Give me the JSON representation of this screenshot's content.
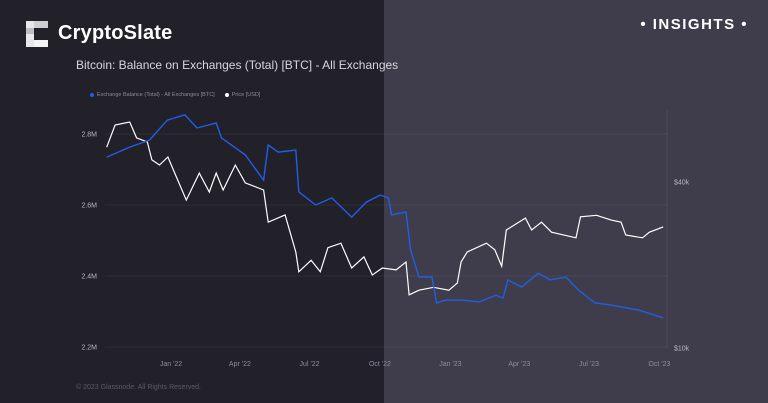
{
  "header": {
    "brand": "CryptoSlate",
    "badge": "INSIGHTS",
    "subtitle": "Bitcoin: Balance on Exchanges (Total) [BTC] - All Exchanges"
  },
  "footer": {
    "copyright": "© 2023 Glassnode. All Rights Reserved."
  },
  "colors": {
    "balance": "#1f5fe8",
    "price": "#ffffff",
    "background_left": "#222029",
    "background_right": "#3f3d4b"
  },
  "chart_data": {
    "type": "line",
    "title": "Bitcoin: Balance on Exchanges (Total) [BTC] - All Exchanges",
    "legend": {
      "placement": "top-left",
      "entries": [
        "Exchange Balance (Total) - All Exchanges [BTC]",
        "Price [USD]"
      ]
    },
    "x_ticks": [
      "Jan '22",
      "Apr '22",
      "Jul '22",
      "Oct '22",
      "Jan '23",
      "Apr '23",
      "Jul '23",
      "Oct '23"
    ],
    "y_left": {
      "ticks": [
        "2.8M",
        "2.6M",
        "2.4M",
        "2.2M"
      ],
      "tick_values": [
        2.8,
        2.6,
        2.4,
        2.2
      ],
      "range": [
        2.2,
        2.85
      ],
      "unit": "M BTC"
    },
    "y_right": {
      "ticks": [
        "$40k",
        "$10k"
      ],
      "tick_values": [
        40000,
        10000
      ],
      "scale": "log"
    },
    "grid": true,
    "series": [
      {
        "name": "Exchange Balance (Total) - All Exchanges [BTC]",
        "axis": "left",
        "points": [
          [
            "2021-10-09",
            2.735
          ],
          [
            "2021-11-08",
            2.763
          ],
          [
            "2021-12-04",
            2.783
          ],
          [
            "2021-12-27",
            2.839
          ],
          [
            "2022-01-19",
            2.854
          ],
          [
            "2022-02-04",
            2.817
          ],
          [
            "2022-03-01",
            2.831
          ],
          [
            "2022-03-08",
            2.789
          ],
          [
            "2022-04-08",
            2.741
          ],
          [
            "2022-05-02",
            2.67
          ],
          [
            "2022-05-08",
            2.769
          ],
          [
            "2022-05-21",
            2.749
          ],
          [
            "2022-06-13",
            2.755
          ],
          [
            "2022-06-17",
            2.637
          ],
          [
            "2022-07-09",
            2.6
          ],
          [
            "2022-07-30",
            2.62
          ],
          [
            "2022-08-25",
            2.566
          ],
          [
            "2022-09-13",
            2.608
          ],
          [
            "2022-10-01",
            2.628
          ],
          [
            "2022-10-12",
            2.62
          ],
          [
            "2022-10-16",
            2.572
          ],
          [
            "2022-11-04",
            2.58
          ],
          [
            "2022-11-10",
            2.473
          ],
          [
            "2022-11-21",
            2.397
          ],
          [
            "2022-12-08",
            2.397
          ],
          [
            "2022-12-14",
            2.324
          ],
          [
            "2022-12-26",
            2.332
          ],
          [
            "2023-01-16",
            2.332
          ],
          [
            "2023-02-08",
            2.327
          ],
          [
            "2023-03-01",
            2.346
          ],
          [
            "2023-03-11",
            2.338
          ],
          [
            "2023-03-17",
            2.389
          ],
          [
            "2023-04-04",
            2.369
          ],
          [
            "2023-04-26",
            2.408
          ],
          [
            "2023-05-11",
            2.389
          ],
          [
            "2023-06-01",
            2.397
          ],
          [
            "2023-06-17",
            2.361
          ],
          [
            "2023-07-09",
            2.324
          ],
          [
            "2023-07-30",
            2.318
          ],
          [
            "2023-09-04",
            2.304
          ],
          [
            "2023-10-06",
            2.282
          ]
        ]
      },
      {
        "name": "Price [USD]",
        "axis": "right",
        "points": [
          [
            "2021-10-09",
            53500
          ],
          [
            "2021-10-20",
            64400
          ],
          [
            "2021-11-08",
            66000
          ],
          [
            "2021-11-17",
            57800
          ],
          [
            "2021-12-01",
            55900
          ],
          [
            "2021-12-07",
            48100
          ],
          [
            "2021-12-17",
            46100
          ],
          [
            "2021-12-28",
            49300
          ],
          [
            "2022-01-08",
            41700
          ],
          [
            "2022-01-21",
            34400
          ],
          [
            "2022-02-07",
            43100
          ],
          [
            "2022-02-20",
            36800
          ],
          [
            "2022-03-01",
            43100
          ],
          [
            "2022-03-10",
            37400
          ],
          [
            "2022-03-26",
            46100
          ],
          [
            "2022-04-08",
            39700
          ],
          [
            "2022-05-02",
            37400
          ],
          [
            "2022-05-08",
            28600
          ],
          [
            "2022-05-30",
            30400
          ],
          [
            "2022-06-13",
            22300
          ],
          [
            "2022-06-17",
            18900
          ],
          [
            "2022-07-03",
            20800
          ],
          [
            "2022-07-15",
            18900
          ],
          [
            "2022-07-25",
            23100
          ],
          [
            "2022-08-11",
            24000
          ],
          [
            "2022-08-25",
            19500
          ],
          [
            "2022-09-10",
            21400
          ],
          [
            "2022-09-21",
            18400
          ],
          [
            "2022-10-04",
            19500
          ],
          [
            "2022-10-22",
            19200
          ],
          [
            "2022-11-04",
            20500
          ],
          [
            "2022-11-08",
            15600
          ],
          [
            "2022-11-21",
            16200
          ],
          [
            "2022-12-10",
            16600
          ],
          [
            "2022-12-30",
            16200
          ],
          [
            "2023-01-10",
            17200
          ],
          [
            "2023-01-15",
            20500
          ],
          [
            "2023-01-23",
            22300
          ],
          [
            "2023-02-17",
            24000
          ],
          [
            "2023-02-28",
            22700
          ],
          [
            "2023-03-09",
            19800
          ],
          [
            "2023-03-15",
            26800
          ],
          [
            "2023-04-09",
            29600
          ],
          [
            "2023-04-17",
            26800
          ],
          [
            "2023-04-30",
            28600
          ],
          [
            "2023-05-13",
            26300
          ],
          [
            "2023-06-14",
            25100
          ],
          [
            "2023-06-20",
            29900
          ],
          [
            "2023-07-11",
            30300
          ],
          [
            "2023-07-30",
            29100
          ],
          [
            "2023-08-12",
            28600
          ],
          [
            "2023-08-18",
            25700
          ],
          [
            "2023-09-09",
            25100
          ],
          [
            "2023-09-18",
            26300
          ],
          [
            "2023-10-06",
            27500
          ]
        ]
      }
    ]
  }
}
